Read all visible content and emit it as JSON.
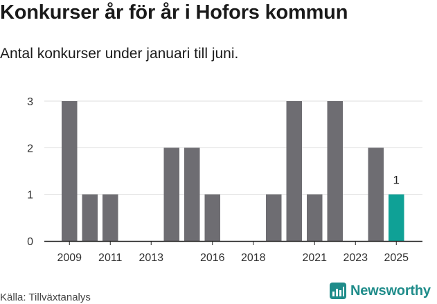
{
  "header": {
    "title": "Konkurser år för år i Hofors kommun",
    "subtitle": "Antal konkurser under januari till juni."
  },
  "footer": {
    "source": "Källa: Tillväxtanalys",
    "brand": "Newsworthy"
  },
  "colors": {
    "bar": "#6e6d72",
    "highlight": "#0fa196",
    "grid": "#dddddd",
    "axis": "#222222",
    "brand": "#1f8c8a"
  },
  "chart_data": {
    "type": "bar",
    "categories": [
      "2009",
      "2010",
      "2011",
      "2012",
      "2013",
      "2014",
      "2015",
      "2016",
      "2017",
      "2018",
      "2019",
      "2020",
      "2021",
      "2022",
      "2023",
      "2024",
      "2025"
    ],
    "values": [
      3,
      1,
      1,
      0,
      0,
      2,
      2,
      1,
      0,
      0,
      1,
      3,
      1,
      3,
      0,
      2,
      1
    ],
    "highlight_index": 16,
    "data_labels": [
      {
        "index": 16,
        "text": "1"
      }
    ],
    "xticks": [
      "2009",
      "2011",
      "2013",
      "2016",
      "2018",
      "2021",
      "2023",
      "2025"
    ],
    "yticks": [
      0,
      1,
      2,
      3
    ],
    "ylim": [
      0,
      3
    ],
    "grid": true,
    "legend": "none"
  }
}
